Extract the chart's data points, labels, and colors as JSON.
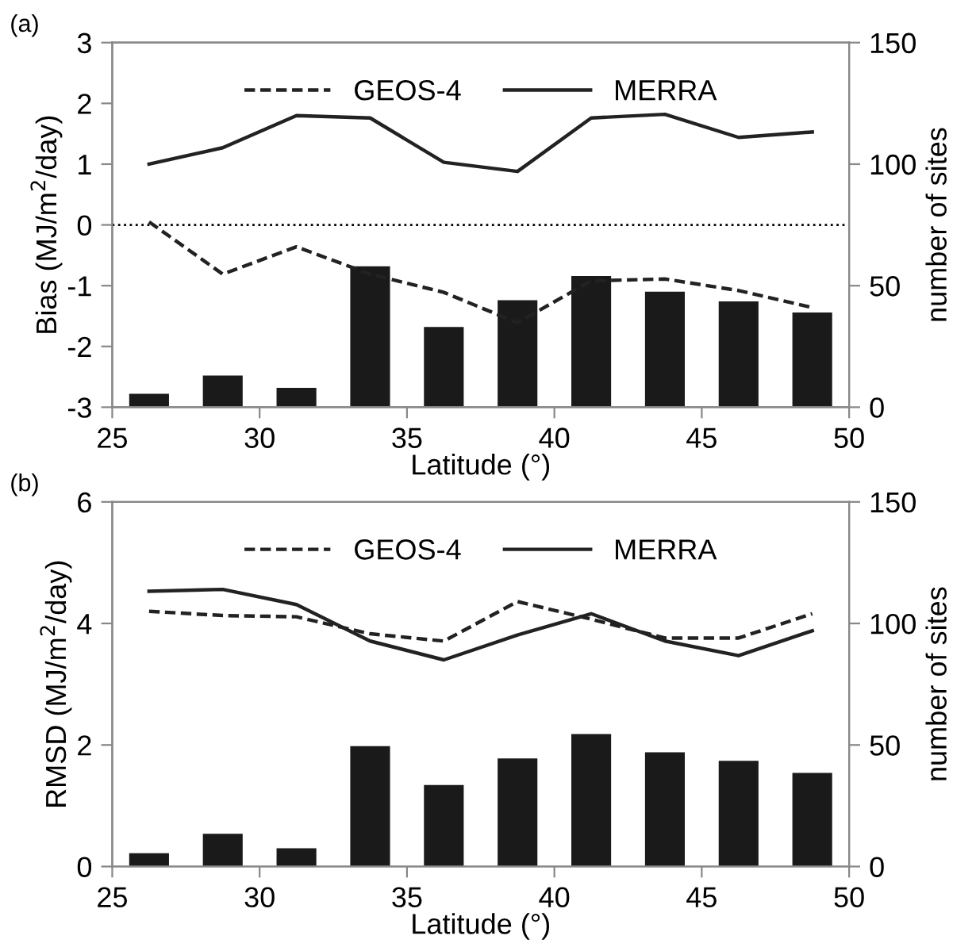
{
  "chart_data": [
    {
      "type": "line",
      "annotations": [
        "(a)"
      ],
      "xlabel": "Latitude (°)",
      "ylabel": "Bias (MJ/m$^{2}$/day)",
      "y2label": "number of sites",
      "x": [
        26.25,
        28.75,
        31.25,
        33.75,
        36.25,
        38.75,
        41.25,
        43.75,
        46.25,
        48.75
      ],
      "xlim": [
        25,
        50
      ],
      "xticks": [
        25,
        30,
        35,
        40,
        45,
        50
      ],
      "ylim": [
        -3,
        3
      ],
      "yticks": [
        -3,
        -2,
        -1,
        0,
        1,
        2,
        3
      ],
      "y2lim": [
        0,
        150
      ],
      "y2ticks": [
        0,
        50,
        100,
        150
      ],
      "series": [
        {
          "type": "bar",
          "axis": "y2",
          "color": "#1a1a1a",
          "values": [
            5.5,
            13,
            8,
            58,
            33,
            44,
            54,
            47.5,
            43.5,
            39
          ]
        },
        {
          "name": "GEOS-4",
          "color": "#222222",
          "line_style": "dashed",
          "values": [
            0.05,
            -0.81,
            -0.36,
            -0.81,
            -1.11,
            -1.61,
            -0.92,
            -0.89,
            -1.08,
            -1.36
          ]
        },
        {
          "name": "MERRA",
          "color": "#222222",
          "line_style": "solid",
          "values": [
            1.0,
            1.27,
            1.8,
            1.76,
            1.03,
            0.88,
            1.76,
            1.82,
            1.44,
            1.53
          ]
        }
      ],
      "ref_lines": [
        {
          "axis": "y",
          "value": 0,
          "color": "#000000",
          "line_style": "dotted"
        }
      ],
      "legend": "top",
      "grid": false,
      "marker": "none"
    },
    {
      "type": "line",
      "annotations": [
        "(b)"
      ],
      "xlabel": "Latitude (°)",
      "ylabel": "RMSD (MJ/m$^{2}$/day)",
      "y2label": "number of sites",
      "x": [
        26.25,
        28.75,
        31.25,
        33.75,
        36.25,
        38.75,
        41.25,
        43.75,
        46.25,
        48.75
      ],
      "xlim": [
        25,
        50
      ],
      "xticks": [
        25,
        30,
        35,
        40,
        45,
        50
      ],
      "ylim": [
        0,
        6
      ],
      "yticks": [
        0,
        2,
        4,
        6
      ],
      "y2lim": [
        0,
        150
      ],
      "y2ticks": [
        0,
        50,
        100,
        150
      ],
      "series": [
        {
          "type": "bar",
          "axis": "y2",
          "color": "#1a1a1a",
          "values": [
            5.5,
            13.5,
            7.5,
            49.5,
            33.5,
            44.5,
            54.5,
            47,
            43.5,
            38.5
          ]
        },
        {
          "name": "GEOS-4",
          "color": "#222222",
          "line_style": "dashed",
          "values": [
            4.2,
            4.13,
            4.11,
            3.83,
            3.71,
            4.36,
            4.07,
            3.76,
            3.76,
            4.16
          ]
        },
        {
          "name": "MERRA",
          "color": "#222222",
          "line_style": "solid",
          "values": [
            4.53,
            4.56,
            4.31,
            3.71,
            3.4,
            3.81,
            4.16,
            3.71,
            3.47,
            3.88
          ]
        }
      ],
      "legend": "top",
      "grid": false,
      "marker": "none"
    }
  ]
}
